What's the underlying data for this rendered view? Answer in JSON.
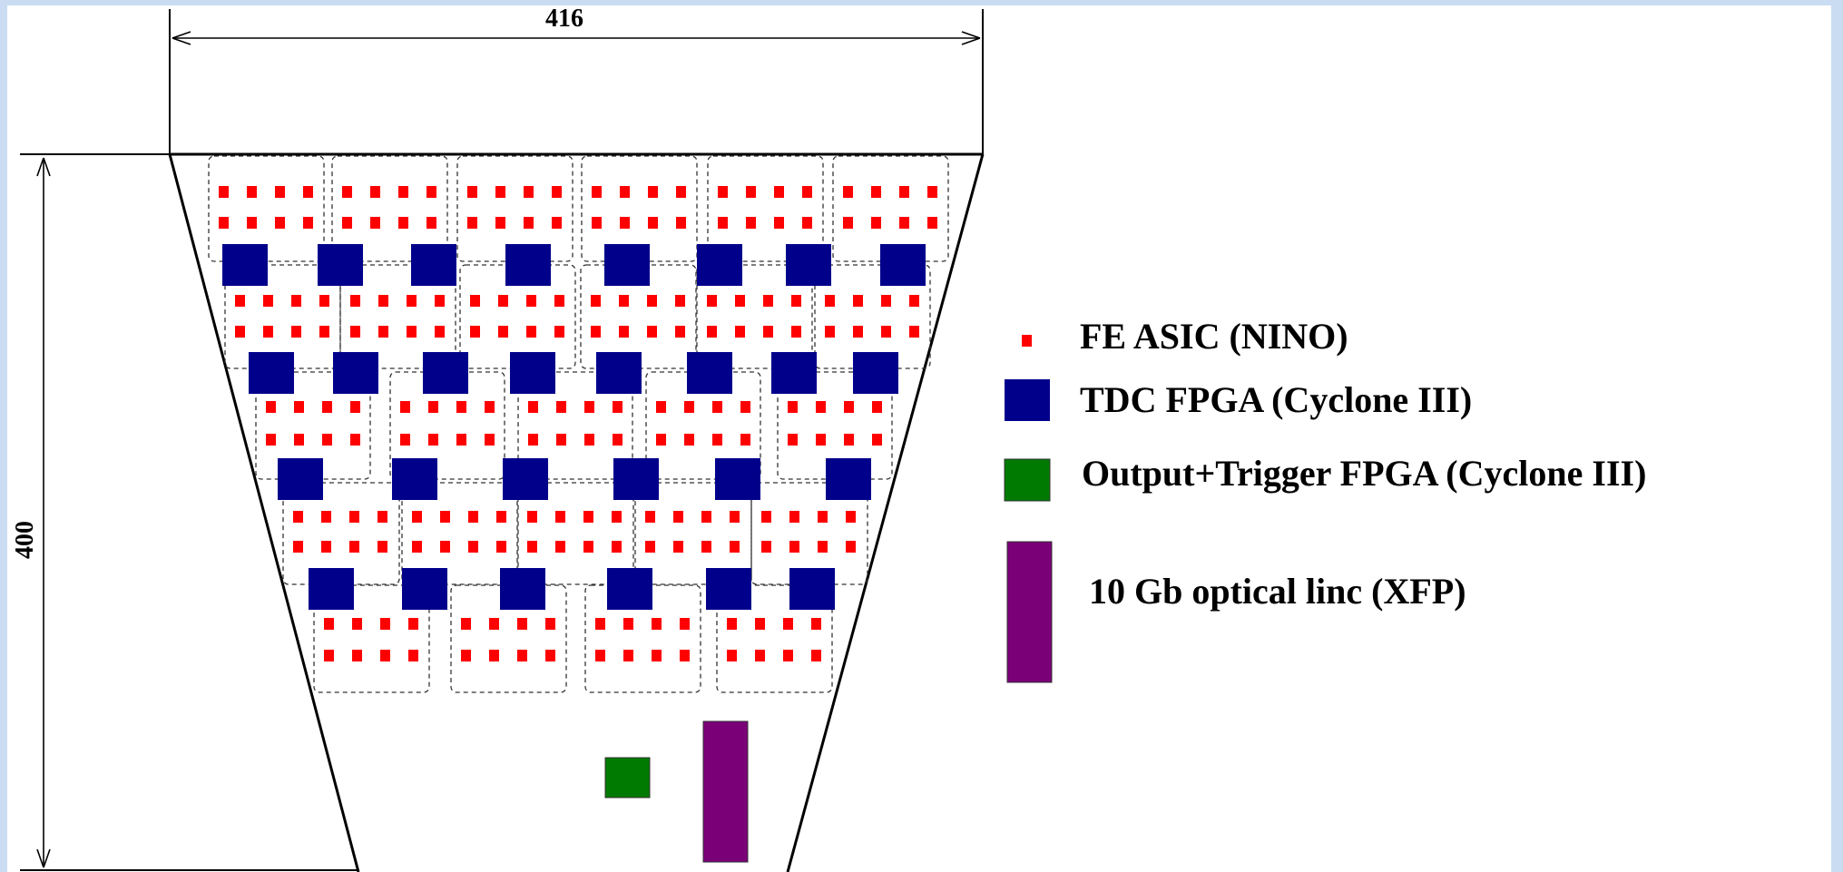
{
  "dimensions": {
    "width_label": "416",
    "height_label": "400"
  },
  "legend": [
    {
      "label": "FE ASIC (NINO)",
      "icon": "small-red-square",
      "color": "#ff0000"
    },
    {
      "label": "TDC FPGA (Cyclone III)",
      "icon": "blue-square",
      "color": "#00008b"
    },
    {
      "label": "Output+Trigger FPGA (Cyclone III)",
      "icon": "green-square",
      "color": "#007a00"
    },
    {
      "label": "10 Gb optical linc (XFP)",
      "icon": "purple-rectangle",
      "color": "#7a0078"
    }
  ],
  "colors": {
    "background_frame": "#c9dcf2",
    "canvas": "#ffffff",
    "outline": "#000000",
    "asic": "#ff0000",
    "tdc": "#00008b",
    "output_fpga": "#007a00",
    "xfp": "#7a0078"
  }
}
